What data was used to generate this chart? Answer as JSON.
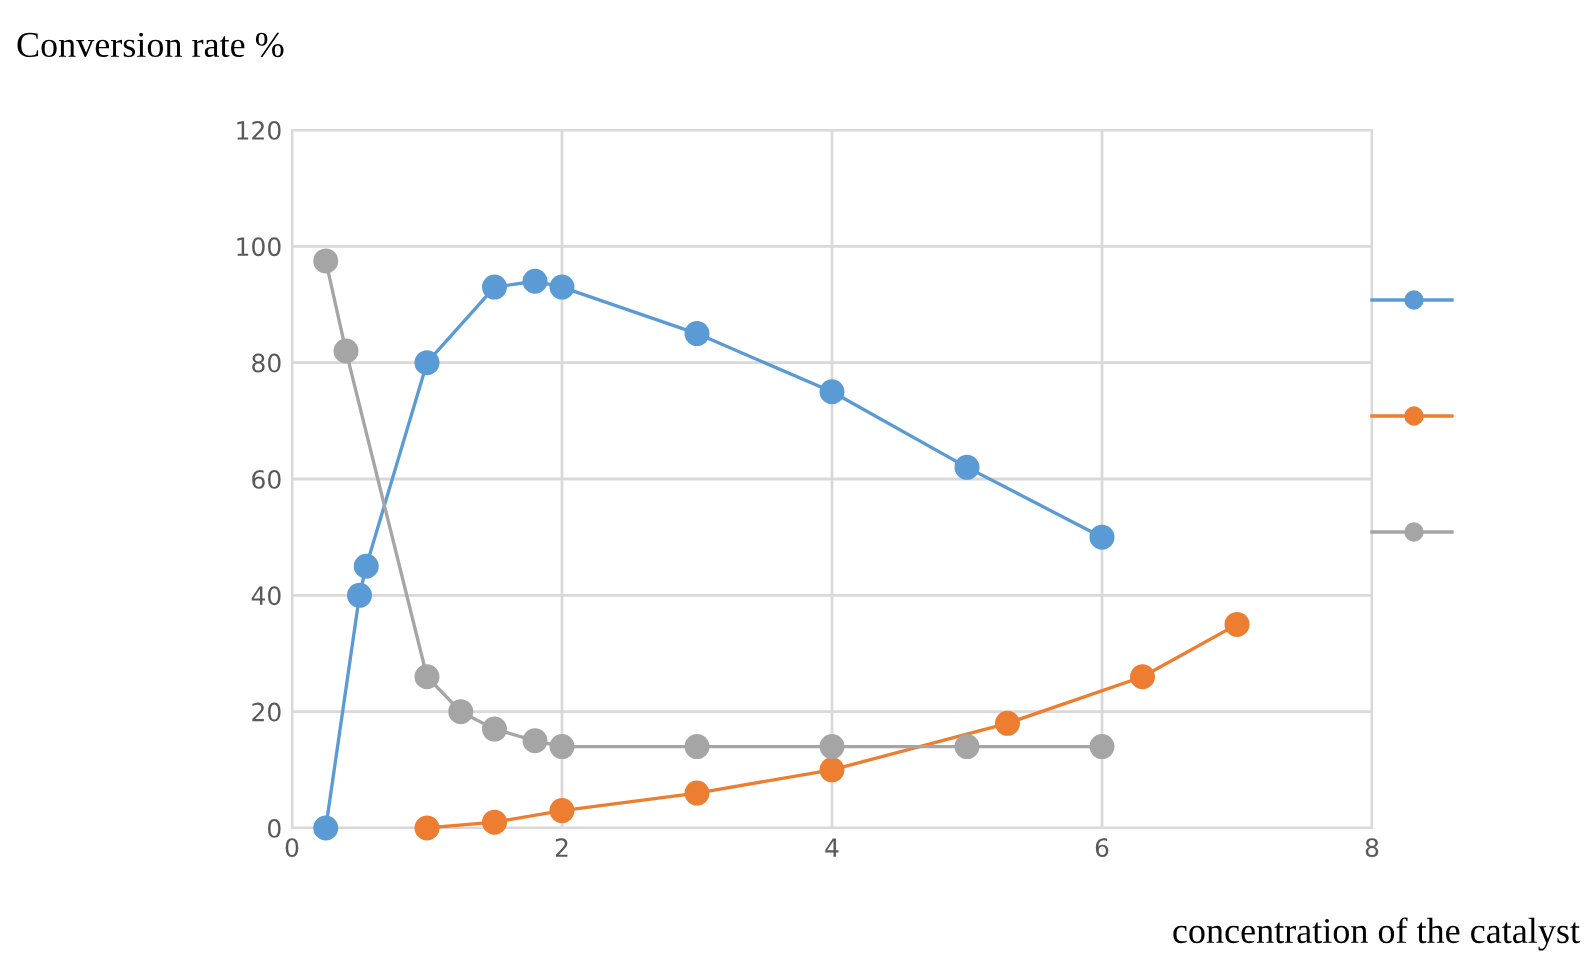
{
  "chart_data": {
    "type": "line",
    "ylabel": "Conversion rate %",
    "xlabel": "concentration of the catalyst",
    "xlim": [
      0,
      8
    ],
    "xticks": [
      0,
      2,
      4,
      6,
      8
    ],
    "ylim": [
      0,
      120
    ],
    "yticks": [
      0,
      20,
      40,
      60,
      80,
      100,
      120
    ],
    "grid": true,
    "marker": "circle",
    "line_style": "solid",
    "series": [
      {
        "color": "#5b9bd5",
        "x": [
          0.25,
          0.5,
          0.55,
          1,
          1.5,
          1.8,
          2,
          3,
          4,
          5,
          6
        ],
        "values": [
          0,
          40,
          45,
          80,
          93,
          94,
          93,
          85,
          75,
          62,
          50
        ]
      },
      {
        "color": "#ed7d31",
        "x": [
          1,
          1.5,
          2,
          3,
          4,
          5.3,
          6.3,
          7
        ],
        "values": [
          0,
          1,
          3,
          6,
          10,
          18,
          26,
          35
        ]
      },
      {
        "color": "#a5a5a5",
        "x": [
          0.25,
          0.4,
          1,
          1.25,
          1.5,
          1.8,
          2,
          3,
          4,
          5,
          6
        ],
        "values": [
          97.5,
          82,
          26,
          20,
          17,
          15,
          14,
          14,
          14,
          14,
          14
        ]
      }
    ]
  }
}
